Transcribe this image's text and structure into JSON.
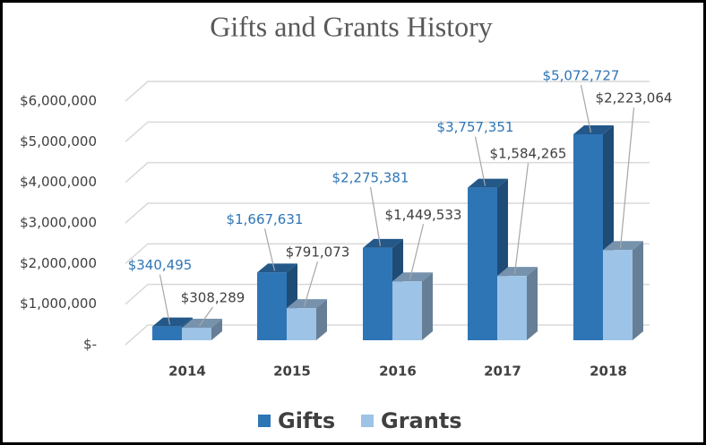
{
  "chart_data": {
    "type": "bar3d",
    "title": "Gifts and Grants History",
    "categories": [
      "2014",
      "2015",
      "2016",
      "2017",
      "2018"
    ],
    "series": [
      {
        "name": "Gifts",
        "color": "#2e75b6",
        "values": [
          340495,
          1667631,
          2275381,
          3757351,
          5072727
        ],
        "value_labels": [
          "$340,495",
          "$1,667,631",
          "$2,275,381",
          "$3,757,351",
          "$5,072,727"
        ]
      },
      {
        "name": "Grants",
        "color": "#9dc3e6",
        "values": [
          308289,
          791073,
          1449533,
          1584265,
          2223064
        ],
        "value_labels": [
          "$308,289",
          "$791,073",
          "$1,449,533",
          "$1,584,265",
          "$2,223,064"
        ]
      }
    ],
    "ylim": [
      0,
      6000000
    ],
    "yticks": [
      {
        "value": 0,
        "label": "$-"
      },
      {
        "value": 1000000,
        "label": "$1,000,000"
      },
      {
        "value": 2000000,
        "label": "$2,000,000"
      },
      {
        "value": 3000000,
        "label": "$3,000,000"
      },
      {
        "value": 4000000,
        "label": "$4,000,000"
      },
      {
        "value": 5000000,
        "label": "$5,000,000"
      },
      {
        "value": 6000000,
        "label": "$6,000,000"
      }
    ],
    "grid": true,
    "legend": "bottom"
  }
}
